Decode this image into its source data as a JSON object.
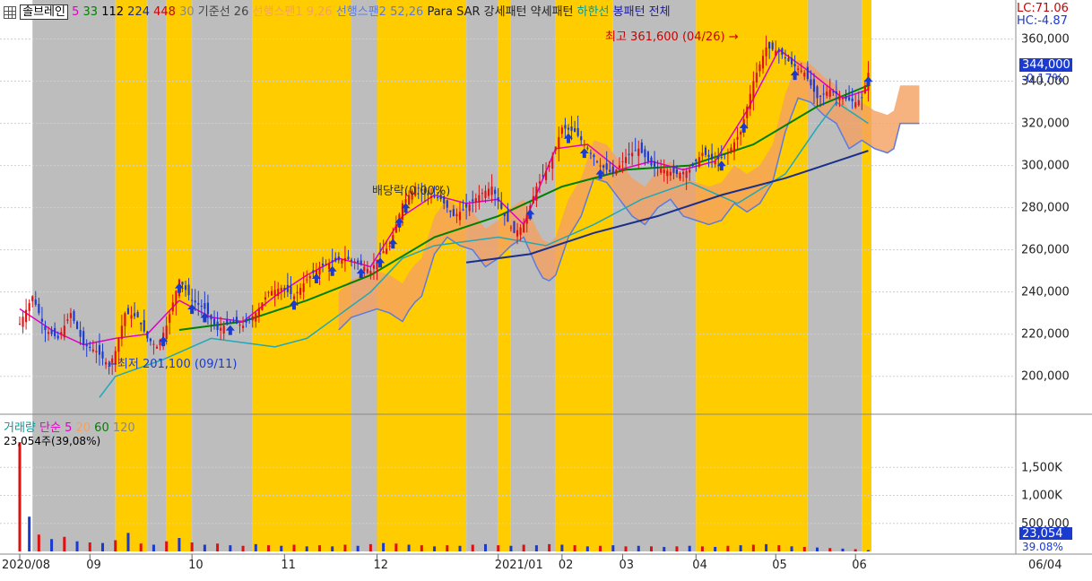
{
  "legend": {
    "stock_name": "솔브레인",
    "ma_periods": [
      {
        "label": "5",
        "color": "#e000c8"
      },
      {
        "label": "33",
        "color": "#008000"
      },
      {
        "label": "112",
        "color": "#000000"
      },
      {
        "label": "224",
        "color": "#1b2f8a"
      },
      {
        "label": "448",
        "color": "#cc0000"
      },
      {
        "label": "30",
        "color": "#888888"
      }
    ],
    "ichimoku": [
      {
        "label": "기준선",
        "color": "#444444"
      },
      {
        "label": "26",
        "color": "#444444"
      },
      {
        "label": "선행스팬1",
        "color": "#f4a060"
      },
      {
        "label": "9,26",
        "color": "#f4a060"
      },
      {
        "label": "선행스팬2",
        "color": "#5a7be0"
      },
      {
        "label": "52,26",
        "color": "#5a7be0"
      }
    ],
    "patterns": [
      {
        "label": "Para SAR",
        "color": "#222222"
      },
      {
        "label": "강세패턴",
        "color": "#222222"
      },
      {
        "label": "약세패턴",
        "color": "#222222"
      },
      {
        "label": "하한선",
        "color": "#009a9a"
      },
      {
        "label": "봉패턴",
        "color": "#1a1aa0"
      },
      {
        "label": "전체",
        "color": "#1a1aa0"
      }
    ],
    "volume_legend": [
      {
        "label": "거래량",
        "color": "#009a9a"
      },
      {
        "label": "단순",
        "color": "#e000c8"
      },
      {
        "label": "5",
        "color": "#e000c8"
      },
      {
        "label": "20",
        "color": "#f4a060"
      },
      {
        "label": "60",
        "color": "#008000"
      },
      {
        "label": "120",
        "color": "#888888"
      }
    ],
    "volume_text": "23,054주(39,08%)"
  },
  "right_panel": {
    "lc": "LC:71.06",
    "hc": "HC:-4.87",
    "current_price": "344,000",
    "change_pct": "-0.17%",
    "volume_value": "23,054",
    "volume_pct": "39.08%"
  },
  "annotations": {
    "high": "최고 361,600 (04/26)",
    "low": "최저 201,100 (09/11)",
    "dividend": "배당락(0.00%)"
  },
  "chart_data": {
    "type": "candlestick",
    "price_ylim": [
      185000,
      370000
    ],
    "price_ticks": [
      "360,000",
      "340,000",
      "320,000",
      "300,000",
      "280,000",
      "260,000",
      "240,000",
      "220,000",
      "200,000"
    ],
    "volume_ylim": [
      0,
      2000000
    ],
    "volume_ticks": [
      "1,500K",
      "1,000K",
      "500,000"
    ],
    "x_axis_labels": [
      "2020/08",
      "09",
      "10",
      "11",
      "12",
      "2021/01",
      "02",
      "03",
      "04",
      "05",
      "06"
    ],
    "last_date_label": "06/04",
    "close_path": [
      [
        0,
        225000
      ],
      [
        4,
        238000
      ],
      [
        8,
        222000
      ],
      [
        12,
        218000
      ],
      [
        16,
        230000
      ],
      [
        20,
        215000
      ],
      [
        24,
        212000
      ],
      [
        28,
        205000
      ],
      [
        30,
        212000
      ],
      [
        33,
        230000
      ],
      [
        37,
        228000
      ],
      [
        40,
        218000
      ],
      [
        43,
        214000
      ],
      [
        46,
        224000
      ],
      [
        50,
        246000
      ],
      [
        54,
        236000
      ],
      [
        58,
        232000
      ],
      [
        62,
        222000
      ],
      [
        66,
        226000
      ],
      [
        70,
        224000
      ],
      [
        74,
        230000
      ],
      [
        78,
        240000
      ],
      [
        82,
        242000
      ],
      [
        86,
        238000
      ],
      [
        90,
        246000
      ],
      [
        94,
        252000
      ],
      [
        98,
        254000
      ],
      [
        102,
        256000
      ],
      [
        106,
        254000
      ],
      [
        110,
        250000
      ],
      [
        113,
        258000
      ],
      [
        116,
        262000
      ],
      [
        120,
        282000
      ],
      [
        124,
        290000
      ],
      [
        128,
        286000
      ],
      [
        132,
        284000
      ],
      [
        136,
        276000
      ],
      [
        140,
        280000
      ],
      [
        144,
        286000
      ],
      [
        148,
        290000
      ],
      [
        152,
        276000
      ],
      [
        155,
        268000
      ],
      [
        158,
        272000
      ],
      [
        162,
        290000
      ],
      [
        166,
        300000
      ],
      [
        170,
        318000
      ],
      [
        174,
        316000
      ],
      [
        178,
        308000
      ],
      [
        182,
        300000
      ],
      [
        186,
        296000
      ],
      [
        190,
        304000
      ],
      [
        194,
        308000
      ],
      [
        198,
        300000
      ],
      [
        202,
        298000
      ],
      [
        206,
        296000
      ],
      [
        210,
        298000
      ],
      [
        214,
        306000
      ],
      [
        218,
        302000
      ],
      [
        222,
        306000
      ],
      [
        226,
        316000
      ],
      [
        230,
        340000
      ],
      [
        234,
        356000
      ],
      [
        238,
        354000
      ],
      [
        242,
        348000
      ],
      [
        246,
        344000
      ],
      [
        250,
        332000
      ],
      [
        254,
        336000
      ],
      [
        258,
        332000
      ],
      [
        262,
        330000
      ],
      [
        264,
        332000
      ],
      [
        266,
        344000
      ]
    ],
    "ma5_path": [
      [
        0,
        232000
      ],
      [
        10,
        222000
      ],
      [
        20,
        215000
      ],
      [
        30,
        218000
      ],
      [
        40,
        220000
      ],
      [
        50,
        236000
      ],
      [
        60,
        228000
      ],
      [
        70,
        226000
      ],
      [
        80,
        238000
      ],
      [
        90,
        248000
      ],
      [
        100,
        256000
      ],
      [
        110,
        252000
      ],
      [
        120,
        276000
      ],
      [
        130,
        286000
      ],
      [
        140,
        282000
      ],
      [
        150,
        284000
      ],
      [
        158,
        272000
      ],
      [
        168,
        308000
      ],
      [
        178,
        310000
      ],
      [
        188,
        298000
      ],
      [
        198,
        302000
      ],
      [
        208,
        298000
      ],
      [
        218,
        302000
      ],
      [
        228,
        326000
      ],
      [
        238,
        355000
      ],
      [
        248,
        344000
      ],
      [
        258,
        332000
      ],
      [
        266,
        336000
      ]
    ],
    "ma33_path": [
      [
        50,
        222000
      ],
      [
        70,
        226000
      ],
      [
        90,
        236000
      ],
      [
        110,
        248000
      ],
      [
        130,
        266000
      ],
      [
        150,
        276000
      ],
      [
        170,
        290000
      ],
      [
        190,
        298000
      ],
      [
        210,
        300000
      ],
      [
        230,
        310000
      ],
      [
        250,
        328000
      ],
      [
        266,
        338000
      ]
    ],
    "ma224_path": [
      [
        140,
        254000
      ],
      [
        160,
        258000
      ],
      [
        180,
        268000
      ],
      [
        200,
        276000
      ],
      [
        220,
        286000
      ],
      [
        240,
        294000
      ],
      [
        258,
        303000
      ],
      [
        266,
        307000
      ]
    ],
    "lower_band_path": [
      [
        25,
        190000
      ],
      [
        30,
        200000
      ],
      [
        45,
        208000
      ],
      [
        60,
        218000
      ],
      [
        80,
        214000
      ],
      [
        90,
        218000
      ],
      [
        110,
        240000
      ],
      [
        120,
        256000
      ],
      [
        130,
        262000
      ],
      [
        150,
        266000
      ],
      [
        165,
        262000
      ],
      [
        180,
        272000
      ],
      [
        195,
        284000
      ],
      [
        210,
        292000
      ],
      [
        225,
        282000
      ],
      [
        240,
        296000
      ],
      [
        250,
        318000
      ],
      [
        256,
        330000
      ],
      [
        262,
        324000
      ],
      [
        266,
        320000
      ]
    ],
    "volume_bars": [
      [
        0,
        1950000
      ],
      [
        3,
        620000
      ],
      [
        6,
        300000
      ],
      [
        10,
        220000
      ],
      [
        14,
        260000
      ],
      [
        18,
        180000
      ],
      [
        22,
        160000
      ],
      [
        26,
        150000
      ],
      [
        30,
        200000
      ],
      [
        34,
        330000
      ],
      [
        38,
        140000
      ],
      [
        42,
        120000
      ],
      [
        46,
        180000
      ],
      [
        50,
        240000
      ],
      [
        54,
        160000
      ],
      [
        58,
        120000
      ],
      [
        62,
        140000
      ],
      [
        66,
        110000
      ],
      [
        70,
        100000
      ],
      [
        74,
        130000
      ],
      [
        78,
        110000
      ],
      [
        82,
        100000
      ],
      [
        86,
        120000
      ],
      [
        90,
        90000
      ],
      [
        94,
        110000
      ],
      [
        98,
        90000
      ],
      [
        102,
        120000
      ],
      [
        106,
        100000
      ],
      [
        110,
        130000
      ],
      [
        114,
        150000
      ],
      [
        118,
        140000
      ],
      [
        122,
        120000
      ],
      [
        126,
        110000
      ],
      [
        130,
        90000
      ],
      [
        134,
        110000
      ],
      [
        138,
        100000
      ],
      [
        142,
        120000
      ],
      [
        146,
        130000
      ],
      [
        150,
        110000
      ],
      [
        154,
        100000
      ],
      [
        158,
        120000
      ],
      [
        162,
        110000
      ],
      [
        166,
        130000
      ],
      [
        170,
        120000
      ],
      [
        174,
        110000
      ],
      [
        178,
        90000
      ],
      [
        182,
        100000
      ],
      [
        186,
        110000
      ],
      [
        190,
        90000
      ],
      [
        194,
        100000
      ],
      [
        198,
        90000
      ],
      [
        202,
        80000
      ],
      [
        206,
        90000
      ],
      [
        210,
        100000
      ],
      [
        214,
        90000
      ],
      [
        218,
        80000
      ],
      [
        222,
        100000
      ],
      [
        226,
        110000
      ],
      [
        230,
        120000
      ],
      [
        234,
        130000
      ],
      [
        238,
        110000
      ],
      [
        242,
        90000
      ],
      [
        246,
        80000
      ],
      [
        250,
        70000
      ],
      [
        254,
        60000
      ],
      [
        258,
        50000
      ],
      [
        262,
        40000
      ],
      [
        266,
        23054
      ]
    ],
    "session_blocks": [
      {
        "from": 4,
        "to": 30,
        "color": "#bdbdbd"
      },
      {
        "from": 30,
        "to": 40,
        "color": "#ffcc00"
      },
      {
        "from": 40,
        "to": 46,
        "color": "#bdbdbd"
      },
      {
        "from": 46,
        "to": 54,
        "color": "#ffcc00"
      },
      {
        "from": 54,
        "to": 73,
        "color": "#bdbdbd"
      },
      {
        "from": 73,
        "to": 104,
        "color": "#ffcc00"
      },
      {
        "from": 104,
        "to": 112,
        "color": "#bdbdbd"
      },
      {
        "from": 112,
        "to": 140,
        "color": "#ffcc00"
      },
      {
        "from": 140,
        "to": 150,
        "color": "#bdbdbd"
      },
      {
        "from": 150,
        "to": 154,
        "color": "#ffcc00"
      },
      {
        "from": 154,
        "to": 168,
        "color": "#bdbdbd"
      },
      {
        "from": 168,
        "to": 186,
        "color": "#ffcc00"
      },
      {
        "from": 186,
        "to": 212,
        "color": "#bdbdbd"
      },
      {
        "from": 212,
        "to": 247,
        "color": "#ffcc00"
      },
      {
        "from": 247,
        "to": 264,
        "color": "#bdbdbd"
      },
      {
        "from": 264,
        "to": 267,
        "color": "#ffcc00"
      }
    ]
  }
}
